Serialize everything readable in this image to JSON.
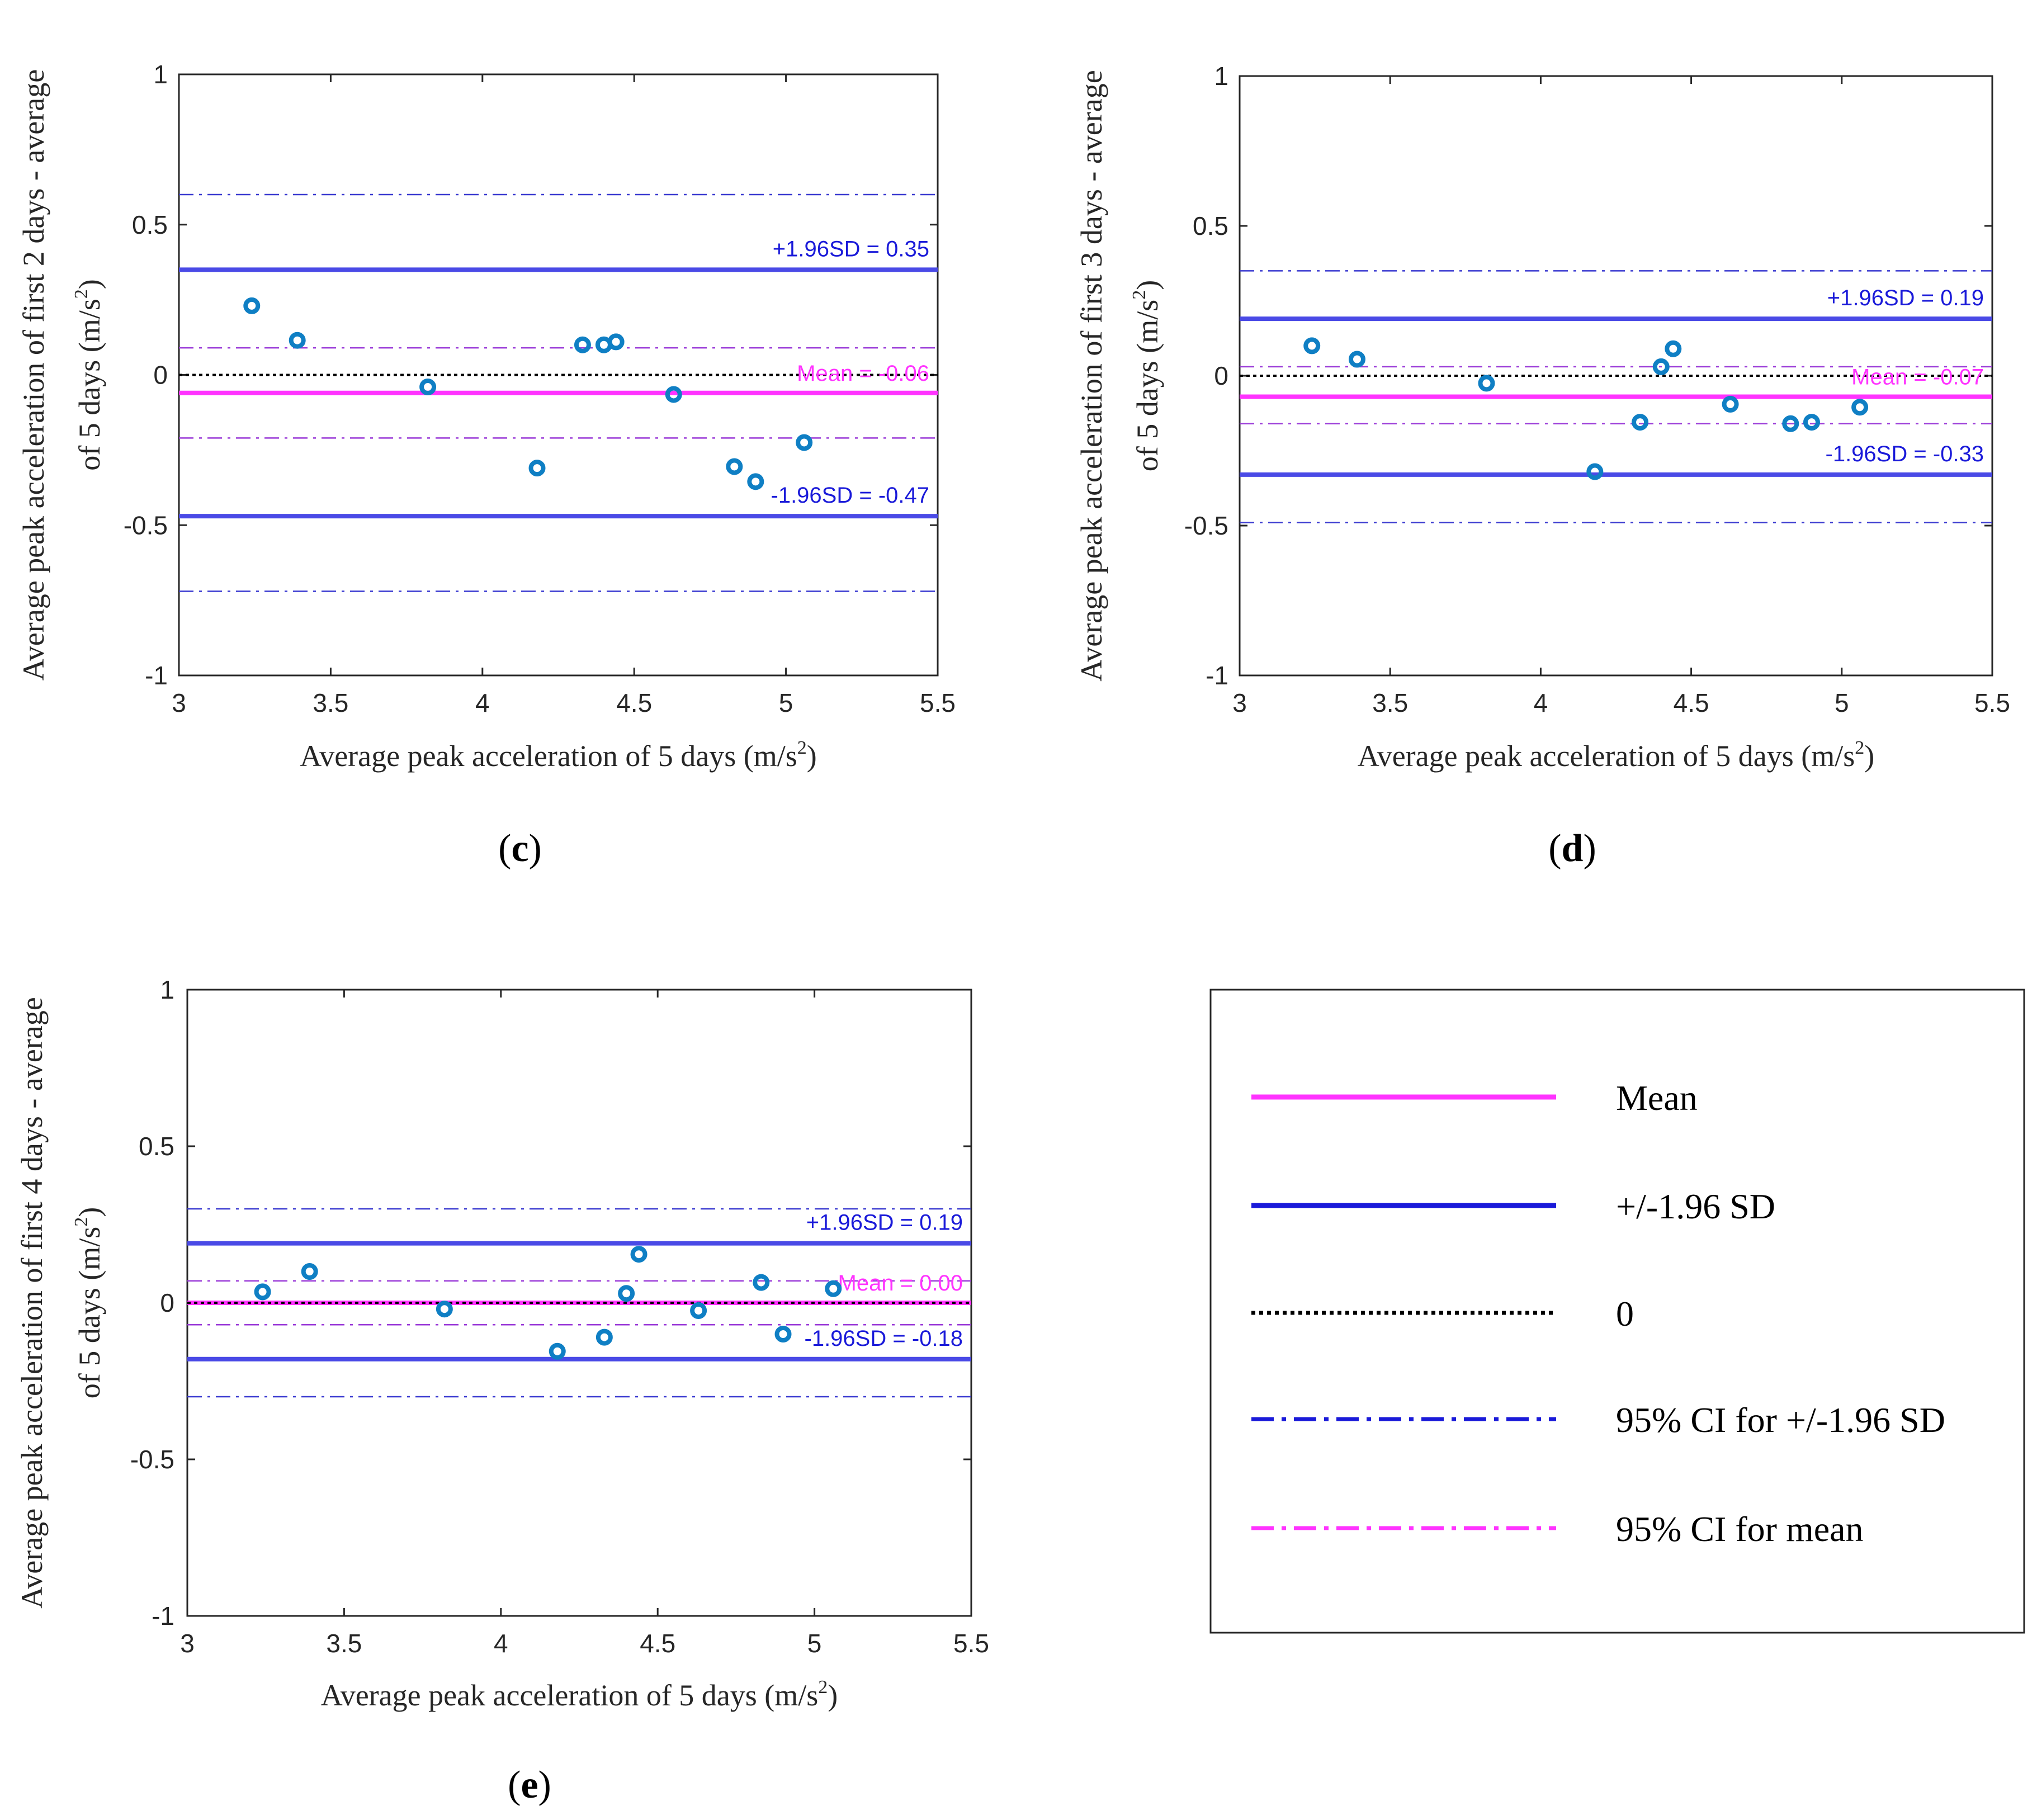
{
  "colors": {
    "mean": "#ff33ff",
    "sd": "#4a4ae6",
    "sd_text": "#1a1ad9",
    "ci": "#3a3ad0",
    "zero": "#000000",
    "marker": "#0f7fc4",
    "axis": "#262626"
  },
  "legend": {
    "items": [
      {
        "key": "mean",
        "label": "Mean"
      },
      {
        "key": "sd",
        "label": "+/-1.96 SD"
      },
      {
        "key": "zero",
        "label": "0"
      },
      {
        "key": "ci_sd",
        "label": "95% CI for +/-1.96 SD"
      },
      {
        "key": "ci_mean",
        "label": "95% CI for mean"
      }
    ]
  },
  "chart_data": [
    {
      "panel": "c",
      "panel_label": {
        "open": "(",
        "letter": "c",
        "close": ")"
      },
      "type": "scatter",
      "xlabel": "Average peak acceleration of 5 days (m/s",
      "xlabel_sup": "2",
      "xlabel_close": ")",
      "ylabel_line1": "Average peak acceleration of first 2 days - average",
      "ylabel_line2": "of 5 days (m/s",
      "ylabel_sup": "2",
      "ylabel_close": ")",
      "xlim": [
        3,
        5.5
      ],
      "ylim": [
        -1,
        1
      ],
      "xticks": [
        3,
        3.5,
        4,
        4.5,
        5,
        5.5
      ],
      "xtick_labels": [
        "3",
        "3.5",
        "4",
        "4.5",
        "5",
        "5.5"
      ],
      "yticks": [
        -1,
        -0.5,
        0,
        0.5,
        1
      ],
      "ytick_labels": [
        "-1",
        "-0.5",
        "0",
        "0.5",
        "1"
      ],
      "mean": -0.06,
      "upper": 0.35,
      "lower": -0.47,
      "ci_mean": [
        0.09,
        -0.21
      ],
      "ci_upper": [
        0.6,
        0.09
      ],
      "ci_lower": [
        -0.21,
        -0.72
      ],
      "annotations": {
        "upper": "+1.96SD = 0.35",
        "mean": "Mean = -0.06",
        "lower": "-1.96SD = -0.47"
      },
      "points": [
        [
          3.24,
          0.23
        ],
        [
          3.39,
          0.115
        ],
        [
          3.82,
          -0.04
        ],
        [
          4.18,
          -0.31
        ],
        [
          4.33,
          0.1
        ],
        [
          4.4,
          0.1
        ],
        [
          4.44,
          0.11
        ],
        [
          4.63,
          -0.065
        ],
        [
          4.83,
          -0.305
        ],
        [
          4.9,
          -0.355
        ],
        [
          5.06,
          -0.225
        ]
      ]
    },
    {
      "panel": "d",
      "panel_label": {
        "open": "(",
        "letter": "d",
        "close": ")"
      },
      "type": "scatter",
      "xlabel": "Average peak acceleration of 5 days (m/s",
      "xlabel_sup": "2",
      "xlabel_close": ")",
      "ylabel_line1": "Average peak acceleration of first 3 days - average",
      "ylabel_line2": "of 5 days (m/s",
      "ylabel_sup": "2",
      "ylabel_close": ")",
      "xlim": [
        3,
        5.5
      ],
      "ylim": [
        -1,
        1
      ],
      "xticks": [
        3,
        3.5,
        4,
        4.5,
        5,
        5.5
      ],
      "xtick_labels": [
        "3",
        "3.5",
        "4",
        "4.5",
        "5",
        "5.5"
      ],
      "yticks": [
        -1,
        -0.5,
        0,
        0.5,
        1
      ],
      "ytick_labels": [
        "-1",
        "-0.5",
        "0",
        "0.5",
        "1"
      ],
      "mean": -0.07,
      "upper": 0.19,
      "lower": -0.33,
      "ci_mean": [
        0.03,
        -0.16
      ],
      "ci_upper": [
        0.35,
        0.03
      ],
      "ci_lower": [
        -0.16,
        -0.49
      ],
      "annotations": {
        "upper": "+1.96SD = 0.19",
        "mean": "Mean = -0.07",
        "lower": "-1.96SD = -0.33"
      },
      "points": [
        [
          3.24,
          0.1
        ],
        [
          3.39,
          0.055
        ],
        [
          3.82,
          -0.025
        ],
        [
          4.18,
          -0.32
        ],
        [
          4.33,
          -0.155
        ],
        [
          4.4,
          0.03
        ],
        [
          4.44,
          0.09
        ],
        [
          4.63,
          -0.095
        ],
        [
          4.83,
          -0.16
        ],
        [
          4.9,
          -0.155
        ],
        [
          5.06,
          -0.105
        ]
      ]
    },
    {
      "panel": "e",
      "panel_label": {
        "open": "(",
        "letter": "e",
        "close": ")"
      },
      "type": "scatter",
      "xlabel": "Average peak acceleration of 5 days (m/s",
      "xlabel_sup": "2",
      "xlabel_close": ")",
      "ylabel_line1": "Average peak acceleration of first 4 days - average",
      "ylabel_line2": "of 5 days (m/s",
      "ylabel_sup": "2",
      "ylabel_close": ")",
      "xlim": [
        3,
        5.5
      ],
      "ylim": [
        -1,
        1
      ],
      "xticks": [
        3,
        3.5,
        4,
        4.5,
        5,
        5.5
      ],
      "xtick_labels": [
        "3",
        "3.5",
        "4",
        "4.5",
        "5",
        "5.5"
      ],
      "yticks": [
        -1,
        -0.5,
        0,
        0.5,
        1
      ],
      "ytick_labels": [
        "-1",
        "-0.5",
        "0",
        "0.5",
        "1"
      ],
      "mean": 0.0,
      "upper": 0.19,
      "lower": -0.18,
      "ci_mean": [
        0.07,
        -0.07
      ],
      "ci_upper": [
        0.3,
        0.07
      ],
      "ci_lower": [
        -0.07,
        -0.3
      ],
      "annotations": {
        "upper": "+1.96SD = 0.19",
        "mean": "Mean = 0.00",
        "lower": "-1.96SD = -0.18"
      },
      "points": [
        [
          3.24,
          0.035
        ],
        [
          3.39,
          0.1
        ],
        [
          3.82,
          -0.02
        ],
        [
          4.18,
          -0.155
        ],
        [
          4.33,
          -0.11
        ],
        [
          4.4,
          0.03
        ],
        [
          4.44,
          0.155
        ],
        [
          4.63,
          -0.025
        ],
        [
          4.83,
          0.065
        ],
        [
          4.9,
          -0.1
        ],
        [
          5.06,
          0.045
        ]
      ]
    }
  ]
}
